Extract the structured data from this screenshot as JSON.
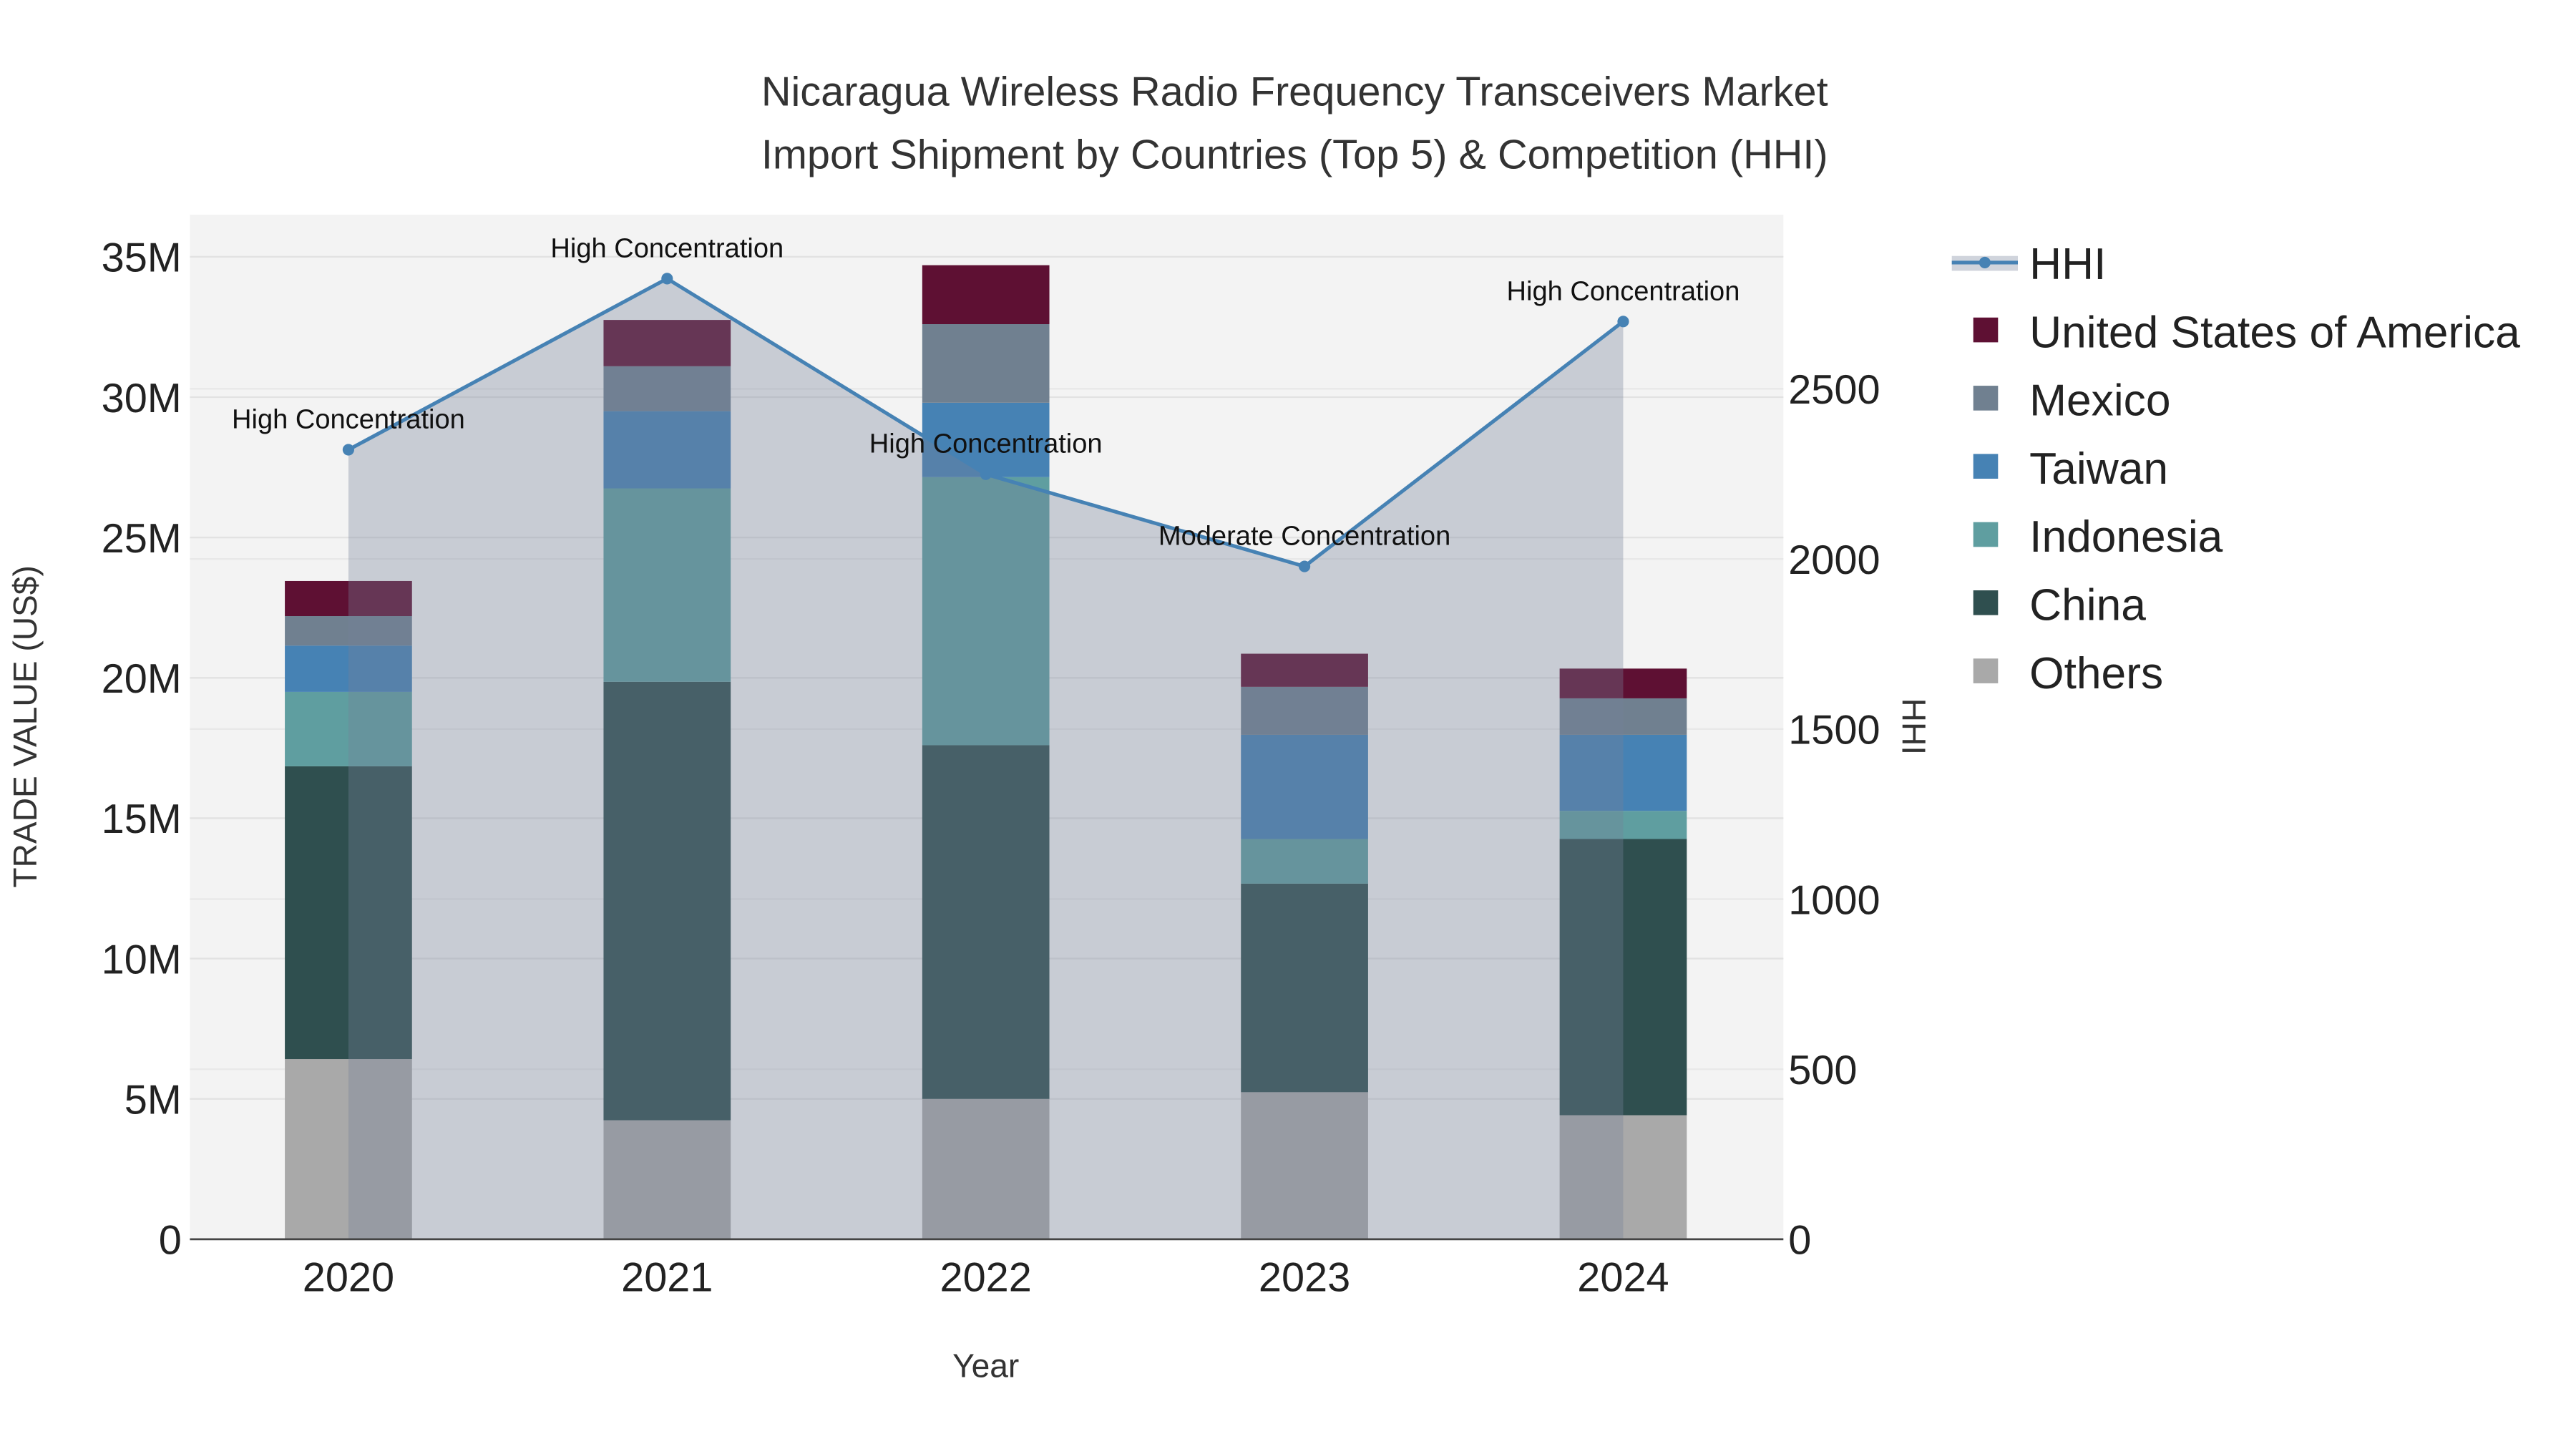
{
  "chart_data": {
    "type": "bar",
    "title_lines": [
      "Nicaragua Wireless Radio Frequency Transceivers Market",
      "Import Shipment by Countries (Top 5) & Competition (HHI)"
    ],
    "xlabel": "Year",
    "ylabel": "TRADE VALUE (US$)",
    "y2label": "HHI",
    "categories": [
      "2020",
      "2021",
      "2022",
      "2023",
      "2024"
    ],
    "ylim": [
      0,
      36.5
    ],
    "y2lim": [
      0,
      3012
    ],
    "yticks": [
      {
        "v": 0,
        "label": "0"
      },
      {
        "v": 5,
        "label": "5M"
      },
      {
        "v": 10,
        "label": "10M"
      },
      {
        "v": 15,
        "label": "15M"
      },
      {
        "v": 20,
        "label": "20M"
      },
      {
        "v": 25,
        "label": "25M"
      },
      {
        "v": 30,
        "label": "30M"
      },
      {
        "v": 35,
        "label": "35M"
      }
    ],
    "y2ticks": [
      0,
      500,
      1000,
      1500,
      2000,
      2500
    ],
    "series": [
      {
        "name": "Others",
        "color": "#a9a9a9",
        "values": [
          6.42,
          4.24,
          5.0,
          5.24,
          4.42
        ]
      },
      {
        "name": "China",
        "color": "#2f4f4f",
        "values": [
          10.43,
          15.62,
          12.6,
          7.43,
          9.84
        ]
      },
      {
        "name": "Indonesia",
        "color": "#5f9ea0",
        "values": [
          2.65,
          6.89,
          9.55,
          1.59,
          1.0
        ]
      },
      {
        "name": "Taiwan",
        "color": "#4682b4",
        "values": [
          1.65,
          2.75,
          2.65,
          3.71,
          2.71
        ]
      },
      {
        "name": "Mexico",
        "color": "#708090",
        "values": [
          1.05,
          1.6,
          2.8,
          1.71,
          1.3
        ]
      },
      {
        "name": "United States of America",
        "color": "#5e1033",
        "values": [
          1.25,
          1.65,
          2.1,
          1.18,
          1.06
        ]
      }
    ],
    "hhi": {
      "name": "HHI",
      "color": "#4682b4",
      "values": [
        2321,
        2824,
        2249,
        1978,
        2698
      ],
      "annotations": [
        "High Concentration",
        "High Concentration",
        "High Concentration",
        "Moderate Concentration",
        "High Concentration"
      ]
    },
    "legend_order": [
      "HHI",
      "United States of America",
      "Mexico",
      "Taiwan",
      "Indonesia",
      "China",
      "Others"
    ],
    "legend_placement": "right"
  }
}
